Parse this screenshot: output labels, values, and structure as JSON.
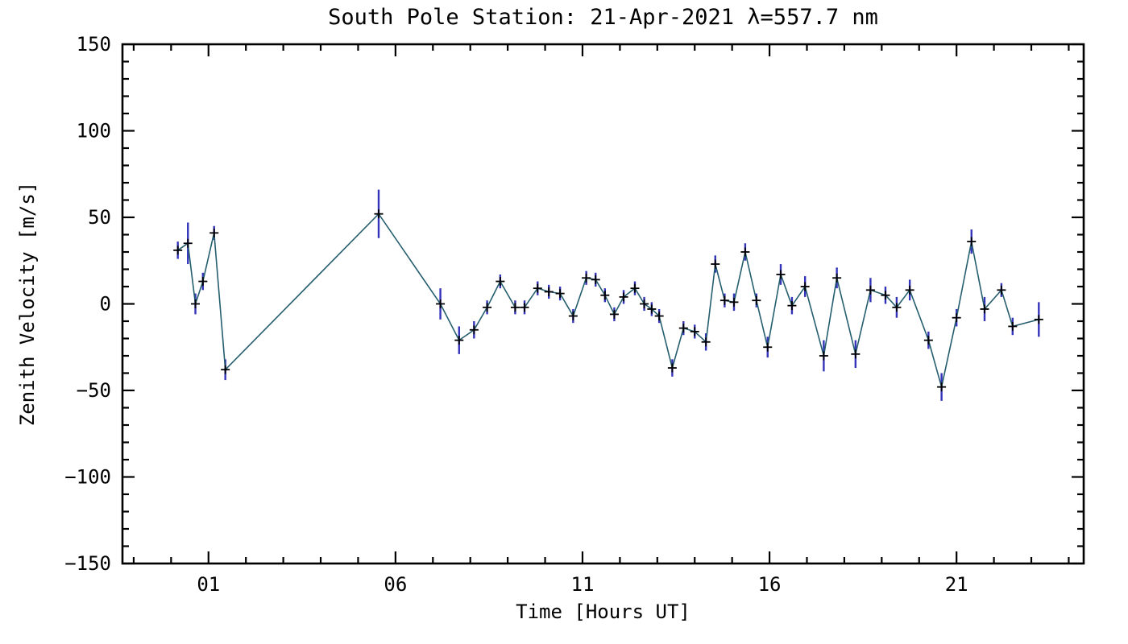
{
  "chart_data": {
    "type": "line",
    "title": "South Pole Station: 21-Apr-2021 λ=557.7 nm",
    "xlabel": "Time [Hours UT]",
    "ylabel": "Zenith Velocity [m/s]",
    "xlim": [
      -1.3,
      24.4
    ],
    "ylim": [
      -150,
      150
    ],
    "grid": false,
    "legend": "none",
    "marker": "plus",
    "line_color": "#255e6e",
    "marker_color": "#000000",
    "error_color": "#3434bb",
    "axis_color": "#000000",
    "background_color": "#ffffff",
    "xticks": {
      "values": [
        1,
        6,
        11,
        16,
        21
      ],
      "labels": [
        "01",
        "06",
        "11",
        "16",
        "21"
      ],
      "minor_interval": 1
    },
    "yticks": {
      "values": [
        -150,
        -100,
        -50,
        0,
        50,
        100,
        150
      ],
      "labels": [
        "−150",
        "−100",
        "−50",
        "0",
        "50",
        "100",
        "150"
      ],
      "minor_interval": 10
    },
    "points_format": [
      "hour_ut",
      "velocity_m_per_s",
      "error_half_length"
    ],
    "points": [
      [
        0.18,
        31,
        5
      ],
      [
        0.45,
        35,
        12
      ],
      [
        0.65,
        0,
        6
      ],
      [
        0.85,
        13,
        5
      ],
      [
        1.15,
        41,
        4
      ],
      [
        1.45,
        -38,
        6
      ],
      [
        5.55,
        52,
        14
      ],
      [
        7.2,
        0,
        9
      ],
      [
        7.7,
        -21,
        8
      ],
      [
        8.1,
        -15,
        5
      ],
      [
        8.45,
        -2,
        4
      ],
      [
        8.8,
        13,
        4
      ],
      [
        9.2,
        -2,
        4
      ],
      [
        9.45,
        -2,
        4
      ],
      [
        9.8,
        9,
        4
      ],
      [
        10.1,
        7,
        4
      ],
      [
        10.4,
        6,
        4
      ],
      [
        10.75,
        -7,
        4
      ],
      [
        11.1,
        15,
        4
      ],
      [
        11.35,
        14,
        4
      ],
      [
        11.6,
        5,
        4
      ],
      [
        11.85,
        -6,
        4
      ],
      [
        12.1,
        4,
        4
      ],
      [
        12.4,
        9,
        4
      ],
      [
        12.65,
        0,
        4
      ],
      [
        12.85,
        -3,
        4
      ],
      [
        13.05,
        -7,
        4
      ],
      [
        13.4,
        -37,
        5
      ],
      [
        13.7,
        -14,
        4
      ],
      [
        14.0,
        -16,
        4
      ],
      [
        14.3,
        -22,
        5
      ],
      [
        14.55,
        23,
        5
      ],
      [
        14.8,
        2,
        4
      ],
      [
        15.05,
        1,
        5
      ],
      [
        15.35,
        30,
        5
      ],
      [
        15.65,
        2,
        4
      ],
      [
        15.95,
        -25,
        6
      ],
      [
        16.3,
        17,
        6
      ],
      [
        16.6,
        -1,
        5
      ],
      [
        16.95,
        10,
        6
      ],
      [
        17.45,
        -30,
        9
      ],
      [
        17.8,
        15,
        6
      ],
      [
        18.3,
        -29,
        8
      ],
      [
        18.7,
        8,
        7
      ],
      [
        19.1,
        5,
        5
      ],
      [
        19.4,
        -2,
        6
      ],
      [
        19.75,
        8,
        6
      ],
      [
        20.25,
        -21,
        5
      ],
      [
        20.6,
        -48,
        8
      ],
      [
        21.0,
        -8,
        5
      ],
      [
        21.4,
        36,
        7
      ],
      [
        21.75,
        -3,
        7
      ],
      [
        22.2,
        8,
        4
      ],
      [
        22.5,
        -13,
        5
      ],
      [
        23.2,
        -9,
        10
      ]
    ]
  }
}
